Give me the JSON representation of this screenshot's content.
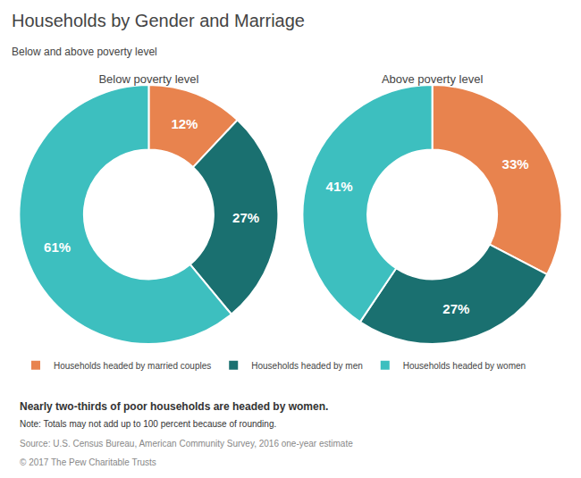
{
  "title": "Households by Gender and Marriage",
  "subtitle": "Below and above poverty level",
  "legend": "bottom left",
  "annotations": [
    "Nearly two-thirds of poor households are headed by women.",
    "Note: Totals may not add up to 100 percent because of rounding.",
    "Source: U.S. Census Bureau, American Community Survey, 2016 one-year estimate",
    "© 2017 The Pew Charitable Trusts"
  ],
  "chart_data": [
    {
      "type": "pie",
      "title": "Below poverty level",
      "categories": [
        "Households headed by married couples",
        "Households headed by men",
        "Households headed by women"
      ],
      "values": [
        12,
        27,
        61
      ],
      "value_labels": [
        "12%",
        "27%",
        "61%"
      ],
      "colors": [
        "#e8834e",
        "#1a7070",
        "#3dbfbf"
      ],
      "data_labels": true
    },
    {
      "type": "pie",
      "title": "Above poverty level",
      "categories": [
        "Households headed by married couples",
        "Households headed by men",
        "Households headed by women"
      ],
      "values": [
        33,
        27,
        41
      ],
      "value_labels": [
        "33%",
        "27%",
        "41%"
      ],
      "colors": [
        "#e8834e",
        "#1a7070",
        "#3dbfbf"
      ],
      "data_labels": true
    }
  ]
}
